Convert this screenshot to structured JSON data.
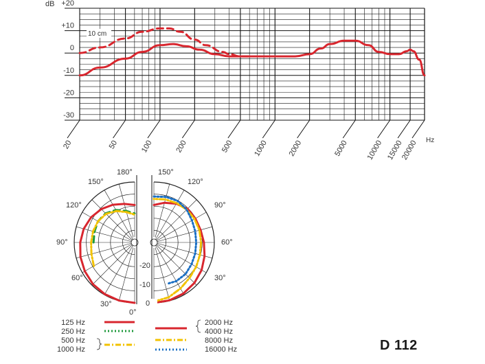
{
  "chart_data": [
    {
      "type": "line",
      "xscale": "log",
      "x_tick_labels": [
        "20",
        "50",
        "100",
        "200",
        "500",
        "1000",
        "2000",
        "5000",
        "10000",
        "15000",
        "20000"
      ],
      "x_unit": "Hz",
      "y_unit": "dB",
      "y_tick_labels": [
        "+20",
        "+10",
        "0",
        "-10",
        "-20",
        "-30"
      ],
      "ylim": [
        -30,
        20
      ],
      "xlim": [
        20,
        20000
      ],
      "grid": true,
      "series": [
        {
          "name": "",
          "style": "solid",
          "color": "#d8262e",
          "x": [
            20,
            30,
            50,
            70,
            100,
            130,
            170,
            220,
            300,
            400,
            500,
            700,
            1000,
            1500,
            2000,
            2500,
            3000,
            4000,
            5000,
            6500,
            8000,
            10000,
            12000,
            14000,
            15000,
            16000,
            18000,
            20000
          ],
          "y": [
            -10,
            -6.5,
            -2.5,
            0.5,
            3.5,
            4,
            3,
            1.5,
            -0.5,
            -1.5,
            -1.5,
            -1.5,
            -1.5,
            -1.5,
            -0.5,
            2,
            4,
            5.5,
            5.5,
            3.5,
            0.5,
            -0.5,
            -0.5,
            0.8,
            1.5,
            0.8,
            -3,
            -10
          ]
        },
        {
          "name": "10 cm",
          "style": "dashed",
          "color": "#d8262e",
          "x": [
            20,
            30,
            50,
            70,
            100,
            120,
            150,
            200,
            250,
            350,
            400,
            500,
            600
          ],
          "y": [
            0,
            2.5,
            6.5,
            9.5,
            11,
            11,
            9.5,
            6,
            3.5,
            0.5,
            -0.5,
            -1.5,
            -1.5
          ]
        }
      ],
      "annotations": [
        "10 cm"
      ]
    },
    {
      "type": "polar",
      "angle_labels": [
        "0°",
        "30°",
        "60°",
        "90°",
        "120°",
        "150°",
        "180°",
        "150°",
        "120°",
        "90°",
        "60°",
        "30°"
      ],
      "radial_labels": [
        "0",
        "-10",
        "-20"
      ],
      "rlim": [
        -25,
        0
      ],
      "legend": [
        {
          "label": "125 Hz",
          "style": "solid",
          "color": "#d8262e"
        },
        {
          "label": "250 Hz",
          "style": "dotted",
          "color": "#1f9a3c"
        },
        {
          "label": "500 Hz",
          "style": "dashdot",
          "color": "#f2c200"
        },
        {
          "label": "1000 Hz",
          "style": "dashdot",
          "color": "#f2c200"
        },
        {
          "label": "2000 Hz",
          "style": "solid",
          "color": "#d8262e"
        },
        {
          "label": "4000 Hz",
          "style": "solid",
          "color": "#d8262e"
        },
        {
          "label": "8000 Hz",
          "style": "dashdot",
          "color": "#f2c200"
        },
        {
          "label": "16000 Hz",
          "style": "dotted",
          "color": "#1a6fc4"
        }
      ],
      "left_half": [
        {
          "name": "125 Hz",
          "color": "#d8262e",
          "style": "solid",
          "angles": [
            0,
            15,
            30,
            45,
            60,
            75,
            90,
            105,
            120,
            135,
            150,
            165,
            180
          ],
          "values": [
            0,
            -0.1,
            -0.3,
            -0.6,
            -1.2,
            -1.8,
            -2.5,
            -3.2,
            -4.2,
            -5.5,
            -7,
            -8.5,
            -9.5
          ]
        },
        {
          "name": "250 Hz",
          "color": "#1f9a3c",
          "style": "dashed",
          "angles": [
            90,
            105,
            120,
            135,
            150,
            165,
            180
          ],
          "values": [
            -8,
            -7.8,
            -7.5,
            -8,
            -9.5,
            -11.5,
            -13
          ]
        },
        {
          "name": "500 Hz / 1000 Hz",
          "color": "#f2c200",
          "style": "dashdot",
          "angles": [
            60,
            75,
            90,
            105,
            120,
            135,
            150,
            165,
            180
          ],
          "values": [
            -5.5,
            -6.5,
            -7,
            -7.2,
            -7.5,
            -8.3,
            -10,
            -12,
            -13.5
          ]
        }
      ],
      "right_half": [
        {
          "name": "2000 Hz / 4000 Hz",
          "color": "#d8262e",
          "style": "solid",
          "angles": [
            0,
            15,
            30,
            45,
            60,
            75,
            90,
            105,
            120,
            135,
            150,
            165,
            180
          ],
          "values": [
            0,
            -0.2,
            -0.6,
            -1.3,
            -2.2,
            -3.3,
            -4.3,
            -5,
            -5.2,
            -5.3,
            -6.5,
            -8,
            -9.5
          ]
        },
        {
          "name": "8000 Hz",
          "color": "#f2c200",
          "style": "dashdot",
          "angles": [
            0,
            15,
            30,
            45,
            60,
            75,
            90,
            105,
            120,
            135,
            150,
            165,
            180
          ],
          "values": [
            -0.5,
            -1.5,
            -3,
            -4.2,
            -4.8,
            -5.3,
            -5.5,
            -5.5,
            -5.6,
            -5.8,
            -6.2,
            -6.6,
            -7
          ]
        },
        {
          "name": "16000 Hz",
          "color": "#1a6fc4",
          "style": "dotted",
          "angles": [
            20,
            30,
            45,
            60,
            75,
            90,
            105,
            120,
            135,
            150,
            165,
            180
          ],
          "values": [
            -7,
            -6.5,
            -6.5,
            -7,
            -7.3,
            -7.5,
            -7.3,
            -6.8,
            -5.8,
            -5.2,
            -5.5,
            -6
          ]
        }
      ]
    }
  ],
  "model_label": "D 112"
}
